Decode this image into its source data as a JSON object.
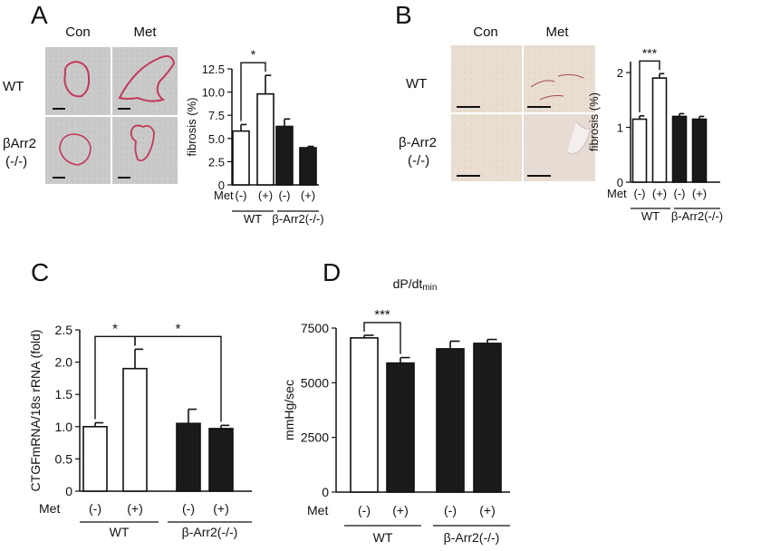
{
  "panels": {
    "A": {
      "letter": "A",
      "con": "Con",
      "met": "Met",
      "row_wt": "WT",
      "row_ko_line1": "βArr2",
      "row_ko_line2": "(-/-)"
    },
    "B": {
      "letter": "B",
      "con": "Con",
      "met": "Met",
      "row_wt": "WT",
      "row_ko_line1": "β-Arr2",
      "row_ko_line2": "(-/-)"
    },
    "C": {
      "letter": "C"
    },
    "D": {
      "letter": "D",
      "title_main": "dP/dt",
      "title_sub": "min"
    }
  },
  "common": {
    "minus": "(-)",
    "plus": "(+)",
    "wt": "WT",
    "ko": "β-Arr2(-/-)",
    "met": "Met"
  },
  "colors": {
    "wt_fill": "#ffffff",
    "ko_fill": "#1a1a1a",
    "stroke": "#111111"
  },
  "chart_data": [
    {
      "id": "A",
      "type": "bar",
      "ylabel": "fibrosis (%)",
      "ylim": [
        0,
        12.5
      ],
      "yticks": [
        0,
        2.5,
        5.0,
        7.5,
        10.0,
        12.5
      ],
      "ytick_labels": [
        "0",
        "2.5",
        "5.0",
        "7.5",
        "10.0",
        "12.5"
      ],
      "xlabel_prefix": "Met",
      "groups": [
        "WT",
        "β-Arr2(-/-)"
      ],
      "categories": [
        "(-)",
        "(+)",
        "(-)",
        "(+)"
      ],
      "values": [
        5.8,
        9.8,
        6.3,
        4.0
      ],
      "errors": [
        0.7,
        2.0,
        0.8,
        0.15
      ],
      "fills": [
        "white",
        "white",
        "black",
        "black"
      ],
      "significance": [
        {
          "pair": [
            0,
            1
          ],
          "label": "*"
        }
      ]
    },
    {
      "id": "B",
      "type": "bar",
      "ylabel": "fibrosis (%)",
      "ylim": [
        0,
        2.2
      ],
      "yticks": [
        0,
        1,
        2
      ],
      "ytick_labels": [
        "0",
        "1",
        "2"
      ],
      "xlabel_prefix": "Met",
      "groups": [
        "WT",
        "β-Arr2(-/-)"
      ],
      "categories": [
        "(-)",
        "(+)",
        "(-)",
        "(+)"
      ],
      "values": [
        1.15,
        1.9,
        1.2,
        1.15
      ],
      "errors": [
        0.06,
        0.08,
        0.05,
        0.05
      ],
      "fills": [
        "white",
        "white",
        "black",
        "black"
      ],
      "significance": [
        {
          "pair": [
            0,
            1
          ],
          "label": "***"
        }
      ]
    },
    {
      "id": "C",
      "type": "bar",
      "ylabel": "CTGFmRNA/18s rRNA (fold)",
      "ylim": [
        0,
        2.5
      ],
      "yticks": [
        0,
        0.5,
        1.0,
        1.5,
        2.0,
        2.5
      ],
      "ytick_labels": [
        "0",
        "0.5",
        "1.0",
        "1.5",
        "2.0",
        "2.5"
      ],
      "xlabel_prefix": "Met",
      "groups": [
        "WT",
        "β-Arr2(-/-)"
      ],
      "categories": [
        "(-)",
        "(+)",
        "(-)",
        "(+)"
      ],
      "values": [
        1.0,
        1.9,
        1.05,
        0.97
      ],
      "errors": [
        0.06,
        0.3,
        0.22,
        0.05
      ],
      "fills": [
        "white",
        "white",
        "black",
        "black"
      ],
      "significance": [
        {
          "pair": [
            0,
            1
          ],
          "label": "*"
        },
        {
          "pair": [
            1,
            3
          ],
          "label": "*"
        }
      ]
    },
    {
      "id": "D",
      "type": "bar",
      "title": "dP/dtmin",
      "ylabel": "mmHg/sec",
      "ylim": [
        0,
        7500
      ],
      "yticks": [
        0,
        2500,
        5000,
        7500
      ],
      "ytick_labels": [
        "0",
        "2500",
        "5000",
        "7500"
      ],
      "xlabel_prefix": "Met",
      "groups": [
        "WT",
        "β-Arr2(-/-)"
      ],
      "categories": [
        "(-)",
        "(+)",
        "(-)",
        "(+)"
      ],
      "values": [
        7050,
        5900,
        6550,
        6800
      ],
      "errors": [
        120,
        250,
        350,
        180
      ],
      "fills": [
        "white",
        "black",
        "black",
        "black"
      ],
      "significance": [
        {
          "pair": [
            0,
            1
          ],
          "label": "***"
        }
      ]
    }
  ]
}
